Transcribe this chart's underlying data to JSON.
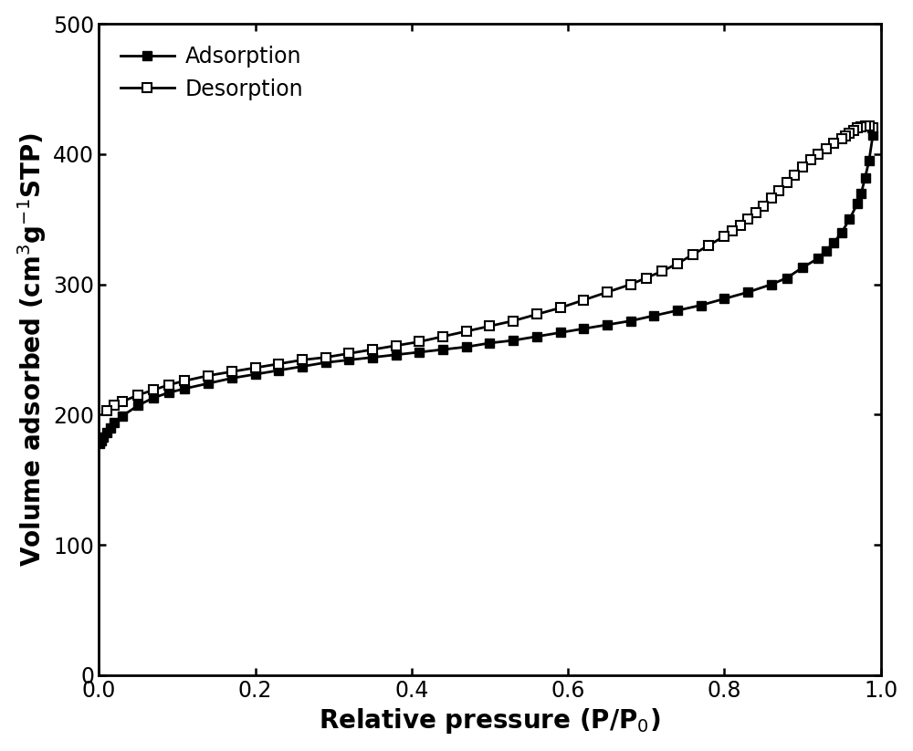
{
  "adsorption_x": [
    0.001,
    0.003,
    0.006,
    0.01,
    0.015,
    0.02,
    0.03,
    0.05,
    0.07,
    0.09,
    0.11,
    0.14,
    0.17,
    0.2,
    0.23,
    0.26,
    0.29,
    0.32,
    0.35,
    0.38,
    0.41,
    0.44,
    0.47,
    0.5,
    0.53,
    0.56,
    0.59,
    0.62,
    0.65,
    0.68,
    0.71,
    0.74,
    0.77,
    0.8,
    0.83,
    0.86,
    0.88,
    0.9,
    0.92,
    0.93,
    0.94,
    0.95,
    0.96,
    0.97,
    0.975,
    0.98,
    0.985,
    0.99
  ],
  "adsorption_y": [
    178,
    180,
    183,
    186,
    190,
    194,
    199,
    207,
    213,
    217,
    220,
    224,
    228,
    231,
    234,
    237,
    240,
    242,
    244,
    246,
    248,
    250,
    252,
    255,
    257,
    260,
    263,
    266,
    269,
    272,
    276,
    280,
    284,
    289,
    294,
    300,
    305,
    313,
    320,
    326,
    332,
    340,
    350,
    362,
    370,
    382,
    395,
    415
  ],
  "desorption_x": [
    0.99,
    0.985,
    0.98,
    0.975,
    0.97,
    0.965,
    0.96,
    0.955,
    0.95,
    0.94,
    0.93,
    0.92,
    0.91,
    0.9,
    0.89,
    0.88,
    0.87,
    0.86,
    0.85,
    0.84,
    0.83,
    0.82,
    0.81,
    0.8,
    0.78,
    0.76,
    0.74,
    0.72,
    0.7,
    0.68,
    0.65,
    0.62,
    0.59,
    0.56,
    0.53,
    0.5,
    0.47,
    0.44,
    0.41,
    0.38,
    0.35,
    0.32,
    0.29,
    0.26,
    0.23,
    0.2,
    0.17,
    0.14,
    0.11,
    0.09,
    0.07,
    0.05,
    0.03,
    0.02,
    0.01
  ],
  "desorption_y": [
    420,
    422,
    422,
    421,
    420,
    418,
    416,
    414,
    412,
    408,
    404,
    400,
    396,
    390,
    384,
    378,
    372,
    366,
    360,
    355,
    350,
    345,
    341,
    337,
    330,
    323,
    316,
    310,
    305,
    300,
    294,
    288,
    282,
    277,
    272,
    268,
    264,
    260,
    256,
    253,
    250,
    247,
    244,
    242,
    239,
    236,
    233,
    230,
    226,
    223,
    219,
    215,
    210,
    207,
    203
  ],
  "xlabel": "Relative pressure (P/P$_0$)",
  "ylabel": "Volume adsorbed (cm$^3$g$^{-1}$STP)",
  "xlim": [
    0.0,
    1.0
  ],
  "ylim": [
    0,
    500
  ],
  "yticks": [
    0,
    100,
    200,
    300,
    400,
    500
  ],
  "xticks": [
    0.0,
    0.2,
    0.4,
    0.6,
    0.8,
    1.0
  ],
  "line_color": "#000000",
  "adsorption_label": "Adsorption",
  "desorption_label": "Desorption",
  "legend_loc": "upper left",
  "linewidth": 2.0,
  "markersize": 7,
  "font_size_labels": 20,
  "font_size_ticks": 17,
  "font_size_legend": 17
}
